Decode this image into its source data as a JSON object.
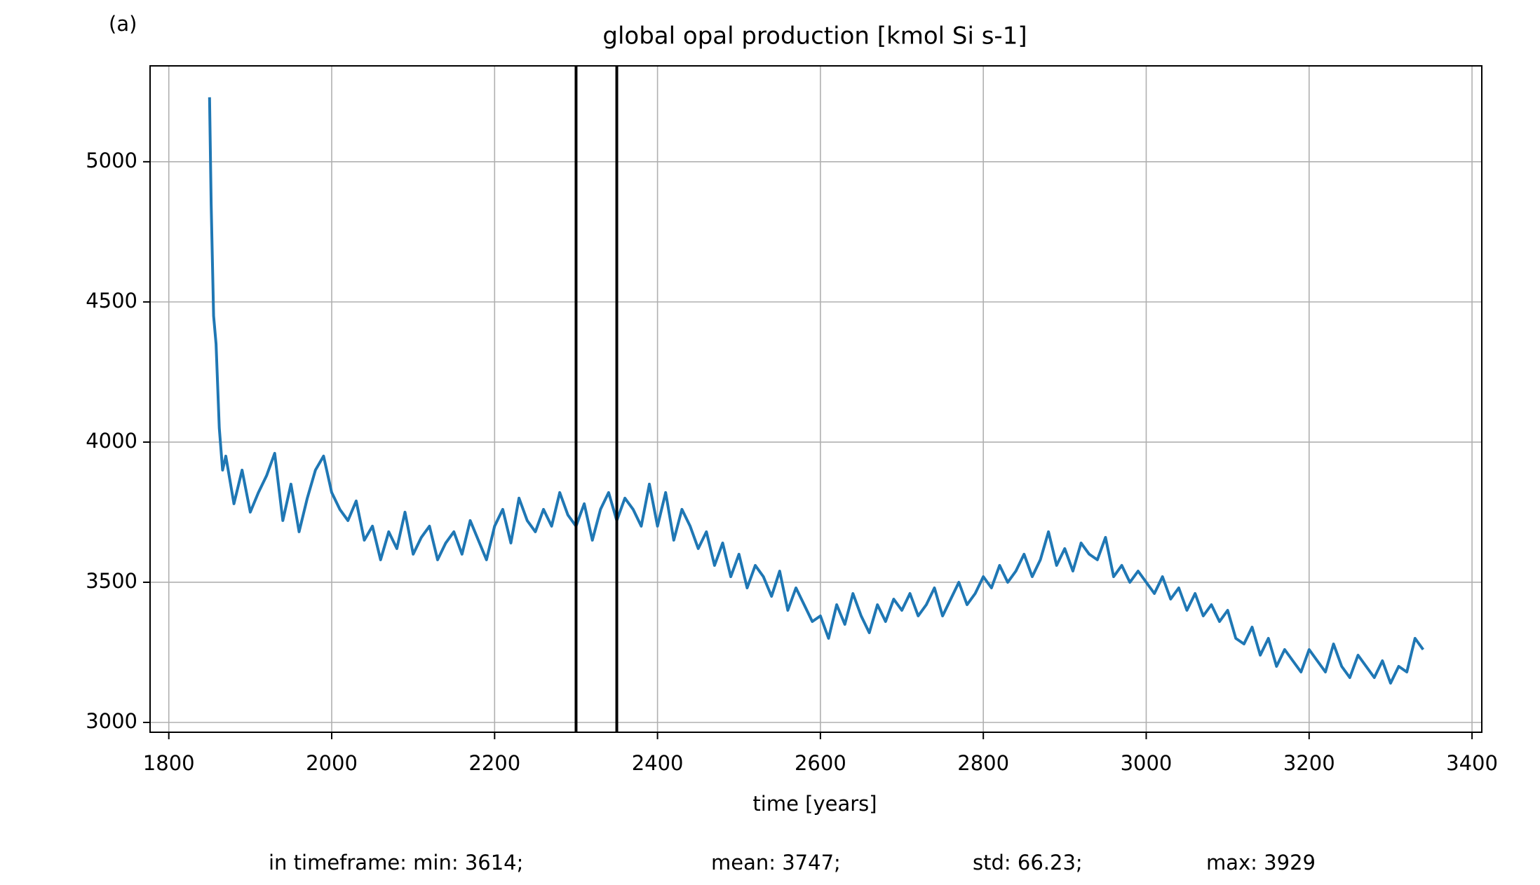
{
  "chart_data": {
    "type": "line",
    "panel_label": "(a)",
    "title": "global opal production [kmol Si s-1]",
    "xlabel": "time [years]",
    "annotations": [
      "in timeframe: min: 3614;",
      "mean: 3747;",
      "std: 66.23;",
      "max: 3929"
    ],
    "x": [
      1850,
      1852,
      1855,
      1858,
      1862,
      1866,
      1870,
      1880,
      1890,
      1900,
      1910,
      1920,
      1930,
      1940,
      1950,
      1960,
      1970,
      1980,
      1990,
      2000,
      2010,
      2020,
      2030,
      2040,
      2050,
      2060,
      2070,
      2080,
      2090,
      2100,
      2110,
      2120,
      2130,
      2140,
      2150,
      2160,
      2170,
      2180,
      2190,
      2200,
      2210,
      2220,
      2230,
      2240,
      2250,
      2260,
      2270,
      2280,
      2290,
      2300,
      2310,
      2320,
      2330,
      2340,
      2350,
      2360,
      2370,
      2380,
      2390,
      2400,
      2410,
      2420,
      2430,
      2440,
      2450,
      2460,
      2470,
      2480,
      2490,
      2500,
      2510,
      2520,
      2530,
      2540,
      2550,
      2560,
      2570,
      2580,
      2590,
      2600,
      2610,
      2620,
      2630,
      2640,
      2650,
      2660,
      2670,
      2680,
      2690,
      2700,
      2710,
      2720,
      2730,
      2740,
      2750,
      2760,
      2770,
      2780,
      2790,
      2800,
      2810,
      2820,
      2830,
      2840,
      2850,
      2860,
      2870,
      2880,
      2890,
      2900,
      2910,
      2920,
      2930,
      2940,
      2950,
      2960,
      2970,
      2980,
      2990,
      3000,
      3010,
      3020,
      3030,
      3040,
      3050,
      3060,
      3070,
      3080,
      3090,
      3100,
      3110,
      3120,
      3130,
      3140,
      3150,
      3160,
      3170,
      3180,
      3190,
      3200,
      3210,
      3220,
      3230,
      3240,
      3250,
      3260,
      3270,
      3280,
      3290,
      3300,
      3310,
      3320,
      3330,
      3340
    ],
    "series": [
      {
        "name": "global opal production",
        "color": "#1f77b4",
        "values": [
          5230,
          4850,
          4450,
          4350,
          4050,
          3900,
          3950,
          3780,
          3900,
          3750,
          3820,
          3880,
          3960,
          3720,
          3850,
          3680,
          3800,
          3900,
          3950,
          3820,
          3760,
          3720,
          3790,
          3650,
          3700,
          3580,
          3680,
          3620,
          3750,
          3600,
          3660,
          3700,
          3580,
          3640,
          3680,
          3600,
          3720,
          3650,
          3580,
          3700,
          3760,
          3640,
          3800,
          3720,
          3680,
          3760,
          3700,
          3820,
          3740,
          3700,
          3780,
          3650,
          3760,
          3820,
          3720,
          3800,
          3760,
          3700,
          3850,
          3700,
          3820,
          3650,
          3760,
          3700,
          3620,
          3680,
          3560,
          3640,
          3520,
          3600,
          3480,
          3560,
          3520,
          3450,
          3540,
          3400,
          3480,
          3420,
          3360,
          3380,
          3300,
          3420,
          3350,
          3460,
          3380,
          3320,
          3420,
          3360,
          3440,
          3400,
          3460,
          3380,
          3420,
          3480,
          3380,
          3440,
          3500,
          3420,
          3460,
          3520,
          3480,
          3560,
          3500,
          3540,
          3600,
          3520,
          3580,
          3680,
          3560,
          3620,
          3540,
          3640,
          3600,
          3580,
          3660,
          3520,
          3560,
          3500,
          3540,
          3500,
          3460,
          3520,
          3440,
          3480,
          3400,
          3460,
          3380,
          3420,
          3360,
          3400,
          3300,
          3280,
          3340,
          3240,
          3300,
          3200,
          3260,
          3220,
          3180,
          3260,
          3220,
          3180,
          3280,
          3200,
          3160,
          3240,
          3200,
          3160,
          3220,
          3140,
          3200,
          3180,
          3300,
          3260
        ]
      }
    ],
    "vlines": [
      2300,
      2350
    ],
    "vline_color": "#000000",
    "xlim": [
      1777,
      3412
    ],
    "xticks": [
      1800,
      2000,
      2200,
      2400,
      2600,
      2800,
      3000,
      3200,
      3400
    ],
    "ylim": [
      2965,
      5342
    ],
    "yticks": [
      3000,
      3500,
      4000,
      4500,
      5000
    ],
    "grid": true
  }
}
